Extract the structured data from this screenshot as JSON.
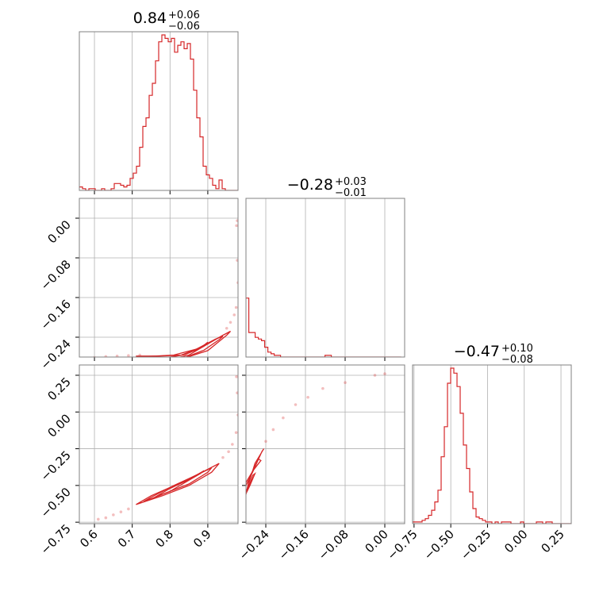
{
  "chart_data": {
    "type": "corner",
    "colors": {
      "series": "#d62728",
      "grid": "#b0b0b0",
      "frame": "#808080"
    },
    "parameters": [
      {
        "limits": [
          0.56,
          0.98
        ],
        "ticks": [
          0.6,
          0.7,
          0.8,
          0.9
        ],
        "tick_labels": [
          "0.6",
          "0.7",
          "0.8",
          "0.9"
        ]
      },
      {
        "limits": [
          -0.28,
          0.04
        ],
        "ticks": [
          -0.24,
          -0.16,
          -0.08,
          0.0
        ],
        "tick_labels": [
          "−0.24",
          "−0.16",
          "−0.08",
          "0.00"
        ]
      },
      {
        "limits": [
          -0.76,
          0.32
        ],
        "ticks": [
          -0.75,
          -0.5,
          -0.25,
          0.0,
          0.25
        ],
        "tick_labels": [
          "−0.75",
          "−0.50",
          "−0.25",
          "0.00",
          "0.25"
        ]
      }
    ],
    "titles": [
      {
        "median": "0.84",
        "plus": "+0.06",
        "minus": "−0.06"
      },
      {
        "median": "−0.28",
        "plus": "+0.03",
        "minus": "−0.01"
      },
      {
        "median": "−0.47",
        "plus": "+0.10",
        "minus": "−0.08"
      }
    ],
    "histograms": [
      {
        "bin_start": 0.56,
        "bin_width": 0.0084,
        "counts": [
          2,
          1,
          0,
          1,
          1,
          0,
          0,
          1,
          0,
          0,
          1,
          4,
          4,
          3,
          2,
          3,
          7,
          10,
          14,
          25,
          37,
          42,
          55,
          62,
          75,
          86,
          90,
          88,
          86,
          88,
          80,
          84,
          86,
          82,
          85,
          76,
          58,
          42,
          31,
          14,
          9,
          7,
          3,
          1,
          6,
          1,
          0,
          0,
          0,
          0
        ]
      },
      {
        "bin_start": -0.287,
        "bin_width": 0.0064,
        "counts": [
          95,
          36,
          15,
          15,
          12,
          11,
          10,
          6,
          3,
          2,
          1,
          1,
          0,
          0,
          0,
          0,
          0,
          0,
          0,
          0,
          0,
          0,
          0,
          0,
          0,
          0,
          1,
          1,
          0,
          0,
          0,
          0,
          0,
          0,
          0,
          0,
          0,
          0,
          0,
          0,
          0,
          0,
          0,
          0,
          0,
          0,
          0,
          0,
          0,
          0
        ]
      },
      {
        "bin_start": -0.76,
        "bin_width": 0.0216,
        "counts": [
          1,
          1,
          1,
          2,
          3,
          5,
          8,
          13,
          20,
          40,
          58,
          84,
          93,
          90,
          82,
          66,
          47,
          33,
          19,
          9,
          4,
          3,
          2,
          1,
          1,
          0,
          1,
          0,
          1,
          1,
          1,
          0,
          0,
          0,
          1,
          0,
          0,
          0,
          0,
          1,
          1,
          0,
          1,
          1,
          0,
          0,
          0,
          0,
          0,
          0
        ]
      }
    ],
    "pairs": [
      {
        "row": 1,
        "col": 0,
        "contours": [
          [
            [
              0.77,
              -0.28
            ],
            [
              0.81,
              -0.283
            ],
            [
              0.85,
              -0.276
            ],
            [
              0.89,
              -0.258
            ],
            [
              0.9,
              -0.25
            ],
            [
              0.88,
              -0.262
            ],
            [
              0.84,
              -0.275
            ],
            [
              0.8,
              -0.28
            ],
            [
              0.77,
              -0.28
            ]
          ],
          [
            [
              0.73,
              -0.279
            ],
            [
              0.78,
              -0.285
            ],
            [
              0.84,
              -0.281
            ],
            [
              0.89,
              -0.266
            ],
            [
              0.93,
              -0.245
            ],
            [
              0.94,
              -0.238
            ],
            [
              0.92,
              -0.244
            ],
            [
              0.87,
              -0.264
            ],
            [
              0.81,
              -0.276
            ],
            [
              0.76,
              -0.278
            ],
            [
              0.73,
              -0.279
            ]
          ],
          [
            [
              0.71,
              -0.278
            ],
            [
              0.76,
              -0.286
            ],
            [
              0.83,
              -0.284
            ],
            [
              0.9,
              -0.267
            ],
            [
              0.95,
              -0.236
            ],
            [
              0.96,
              -0.228
            ],
            [
              0.94,
              -0.236
            ],
            [
              0.89,
              -0.258
            ],
            [
              0.83,
              -0.276
            ],
            [
              0.77,
              -0.278
            ],
            [
              0.71,
              -0.278
            ]
          ]
        ],
        "scatter": [
          [
            0.6,
            -0.281
          ],
          [
            0.63,
            -0.279
          ],
          [
            0.66,
            -0.278
          ],
          [
            0.69,
            -0.277
          ],
          [
            0.72,
            -0.276
          ],
          [
            0.95,
            -0.222
          ],
          [
            0.96,
            -0.21
          ],
          [
            0.97,
            -0.195
          ],
          [
            0.975,
            -0.18
          ],
          [
            0.98,
            -0.13
          ],
          [
            0.978,
            -0.085
          ],
          [
            0.976,
            -0.015
          ],
          [
            0.978,
            -0.005
          ]
        ]
      },
      {
        "row": 2,
        "col": 0,
        "contours": [
          [
            [
              0.76,
              -0.58
            ],
            [
              0.8,
              -0.52
            ],
            [
              0.85,
              -0.46
            ],
            [
              0.89,
              -0.4
            ],
            [
              0.88,
              -0.42
            ],
            [
              0.84,
              -0.48
            ],
            [
              0.8,
              -0.54
            ],
            [
              0.76,
              -0.58
            ]
          ],
          [
            [
              0.73,
              -0.61
            ],
            [
              0.79,
              -0.55
            ],
            [
              0.85,
              -0.49
            ],
            [
              0.9,
              -0.41
            ],
            [
              0.91,
              -0.38
            ],
            [
              0.87,
              -0.43
            ],
            [
              0.81,
              -0.5
            ],
            [
              0.75,
              -0.58
            ],
            [
              0.73,
              -0.61
            ]
          ],
          [
            [
              0.71,
              -0.63
            ],
            [
              0.78,
              -0.57
            ],
            [
              0.85,
              -0.5
            ],
            [
              0.91,
              -0.41
            ],
            [
              0.93,
              -0.35
            ],
            [
              0.9,
              -0.39
            ],
            [
              0.83,
              -0.48
            ],
            [
              0.75,
              -0.57
            ],
            [
              0.71,
              -0.63
            ]
          ]
        ],
        "scatter": [
          [
            0.61,
            -0.73
          ],
          [
            0.63,
            -0.72
          ],
          [
            0.65,
            -0.7
          ],
          [
            0.67,
            -0.68
          ],
          [
            0.69,
            -0.66
          ],
          [
            0.94,
            -0.31
          ],
          [
            0.955,
            -0.27
          ],
          [
            0.965,
            -0.22
          ],
          [
            0.975,
            -0.14
          ],
          [
            0.98,
            -0.02
          ],
          [
            0.978,
            0.13
          ],
          [
            0.976,
            0.24
          ]
        ]
      },
      {
        "row": 2,
        "col": 1,
        "contours": [
          [
            [
              -0.282,
              -0.57
            ],
            [
              -0.272,
              -0.5
            ],
            [
              -0.262,
              -0.42
            ],
            [
              -0.266,
              -0.43
            ],
            [
              -0.276,
              -0.52
            ],
            [
              -0.282,
              -0.57
            ]
          ],
          [
            [
              -0.285,
              -0.64
            ],
            [
              -0.28,
              -0.48
            ],
            [
              -0.266,
              -0.4
            ],
            [
              -0.25,
              -0.33
            ],
            [
              -0.255,
              -0.32
            ],
            [
              -0.272,
              -0.44
            ],
            [
              -0.284,
              -0.62
            ],
            [
              -0.285,
              -0.64
            ]
          ],
          [
            [
              -0.287,
              -0.72
            ],
            [
              -0.283,
              -0.52
            ],
            [
              -0.268,
              -0.42
            ],
            [
              -0.248,
              -0.27
            ],
            [
              -0.244,
              -0.25
            ],
            [
              -0.262,
              -0.35
            ],
            [
              -0.28,
              -0.55
            ],
            [
              -0.284,
              -0.7
            ],
            [
              -0.287,
              -0.72
            ]
          ]
        ],
        "scatter": [
          [
            -0.286,
            -0.74
          ],
          [
            -0.285,
            -0.7
          ],
          [
            -0.24,
            -0.2
          ],
          [
            -0.225,
            -0.12
          ],
          [
            -0.205,
            -0.04
          ],
          [
            -0.18,
            0.05
          ],
          [
            -0.155,
            0.1
          ],
          [
            -0.125,
            0.16
          ],
          [
            -0.08,
            0.2
          ],
          [
            -0.02,
            0.25
          ],
          [
            0.0,
            0.26
          ]
        ]
      }
    ]
  }
}
